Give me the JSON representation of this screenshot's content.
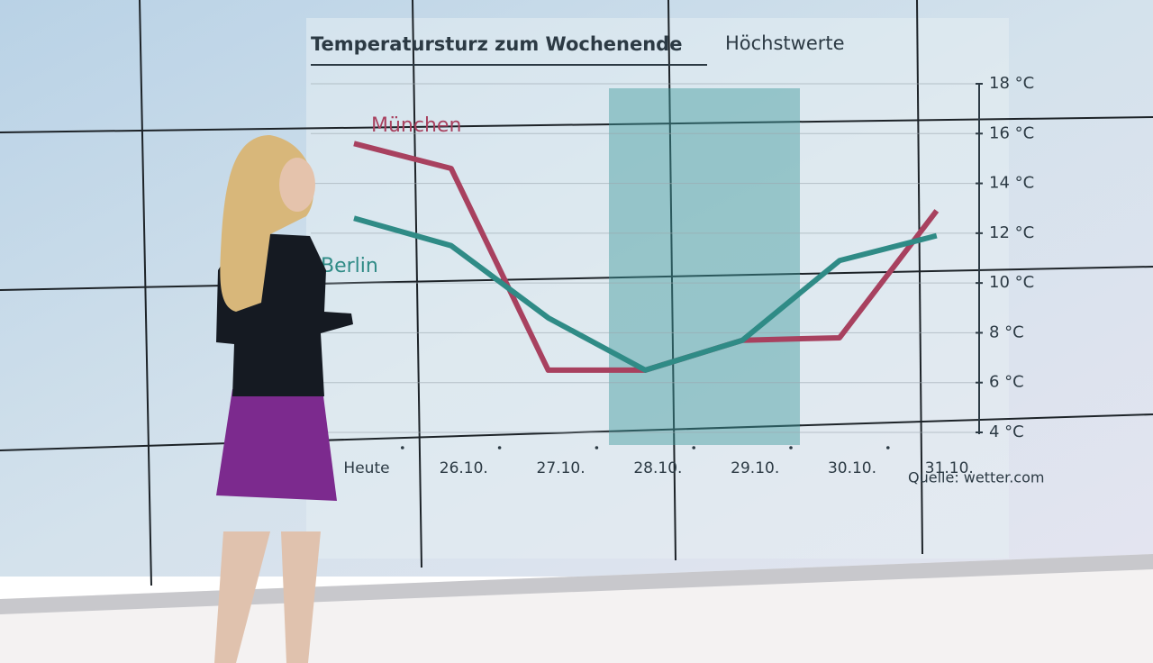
{
  "chart_data": {
    "type": "line",
    "title": "Temperatursturz zum Wochenende",
    "subtitle": "Höchstwerte",
    "source": "Quelle: wetter.com",
    "categories": [
      "Heute",
      "26.10.",
      "27.10.",
      "28.10.",
      "29.10.",
      "30.10.",
      "31.10."
    ],
    "series": [
      {
        "name": "München",
        "color": "#a8415f",
        "values": [
          15.6,
          14.6,
          6.5,
          6.5,
          7.7,
          7.8,
          12.9
        ]
      },
      {
        "name": "Berlin",
        "color": "#2f8b86",
        "values": [
          12.6,
          11.5,
          8.6,
          6.5,
          7.7,
          10.9,
          11.9
        ]
      }
    ],
    "ylim": [
      4,
      18
    ],
    "yticks": [
      {
        "value": 4,
        "label": "4 °C"
      },
      {
        "value": 6,
        "label": "6 °C"
      },
      {
        "value": 8,
        "label": "8 °C"
      },
      {
        "value": 10,
        "label": "10 °C"
      },
      {
        "value": 12,
        "label": "12 °C"
      },
      {
        "value": 14,
        "label": "14 °C"
      },
      {
        "value": 16,
        "label": "16 °C"
      },
      {
        "value": 18,
        "label": "18 °C"
      }
    ],
    "grid": true
  }
}
